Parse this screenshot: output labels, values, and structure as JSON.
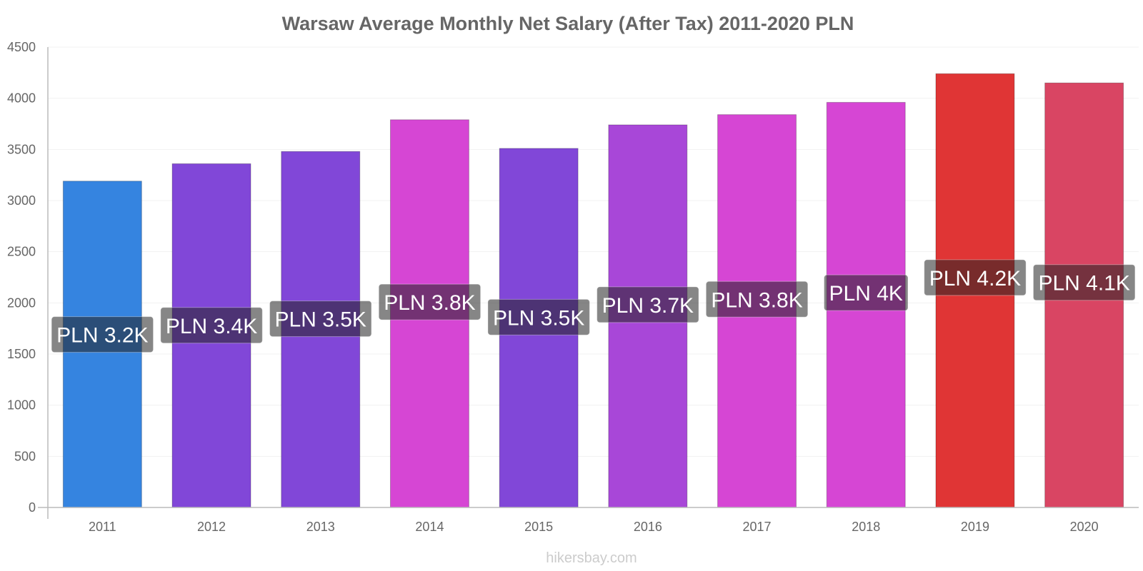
{
  "chart_data": {
    "type": "bar",
    "title": "Warsaw Average Monthly Net Salary (After Tax) 2011-2020 PLN",
    "xlabel": "",
    "ylabel": "",
    "ylim": [
      0,
      4500
    ],
    "yticks": [
      0,
      500,
      1000,
      1500,
      2000,
      2500,
      3000,
      3500,
      4000,
      4500
    ],
    "grid": true,
    "categories": [
      "2011",
      "2012",
      "2013",
      "2014",
      "2015",
      "2016",
      "2017",
      "2018",
      "2019",
      "2020"
    ],
    "values": [
      3190,
      3360,
      3480,
      3790,
      3510,
      3740,
      3840,
      3960,
      4240,
      4150
    ],
    "data_labels": [
      "PLN 3.2K",
      "PLN 3.4K",
      "PLN 3.5K",
      "PLN 3.8K",
      "PLN 3.5K",
      "PLN 3.7K",
      "PLN 3.8K",
      "PLN 4K",
      "PLN 4.2K",
      "PLN 4.1K"
    ],
    "colors": [
      "#3584e0",
      "#8147d8",
      "#8147d8",
      "#d646d4",
      "#8147d8",
      "#a847d8",
      "#d646d4",
      "#d646d4",
      "#e03535",
      "#d94563"
    ]
  },
  "watermark": "hikersbay.com"
}
